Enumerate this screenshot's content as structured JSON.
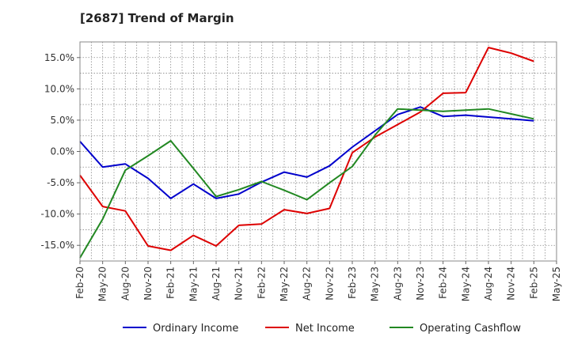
{
  "chart_data": {
    "type": "line",
    "title": "[2687]  Trend of Margin",
    "xlabel": "",
    "ylabel": "",
    "ylim": [
      -17.5,
      17.5
    ],
    "yticks": [
      15,
      10,
      5,
      0,
      -5,
      -10,
      -15
    ],
    "yticklabels": [
      "15.0%",
      "10.0%",
      "5.0%",
      "0.0%",
      "-5.0%",
      "-10.0%",
      "-15.0%"
    ],
    "grid": true,
    "legend_position": "bottom",
    "categories": [
      "Feb-20",
      "May-20",
      "Aug-20",
      "Nov-20",
      "Feb-21",
      "May-21",
      "Aug-21",
      "Nov-21",
      "Feb-22",
      "May-22",
      "Aug-22",
      "Nov-22",
      "Feb-23",
      "May-23",
      "Aug-23",
      "Nov-23",
      "Feb-24",
      "May-24",
      "Aug-24",
      "Nov-24",
      "Feb-25",
      "May-25"
    ],
    "series": [
      {
        "name": "Ordinary Income",
        "color": "#0000cc",
        "values": [
          1.6,
          -2.5,
          -2.0,
          -4.3,
          -7.5,
          -5.2,
          -7.5,
          -6.8,
          -4.9,
          -3.3,
          -4.1,
          -2.3,
          0.7,
          3.3,
          5.9,
          7.1,
          5.6,
          5.8,
          5.5,
          5.2,
          4.9,
          null
        ]
      },
      {
        "name": "Net Income",
        "color": "#dd0000",
        "values": [
          -3.8,
          -8.8,
          -9.5,
          -15.1,
          -15.8,
          -13.4,
          -15.1,
          -11.8,
          -11.6,
          -9.3,
          -9.9,
          -9.1,
          -0.2,
          2.3,
          4.3,
          6.3,
          9.3,
          9.4,
          16.6,
          15.7,
          14.4,
          null
        ]
      },
      {
        "name": "Operating Cashflow",
        "color": "#228822",
        "values": [
          -17.0,
          -10.8,
          -3.0,
          -0.7,
          1.7,
          -2.7,
          -7.2,
          -6.1,
          -4.8,
          -6.2,
          -7.7,
          -5.0,
          -2.4,
          2.6,
          6.8,
          6.6,
          6.4,
          6.6,
          6.8,
          6.0,
          5.2,
          null
        ]
      }
    ]
  }
}
